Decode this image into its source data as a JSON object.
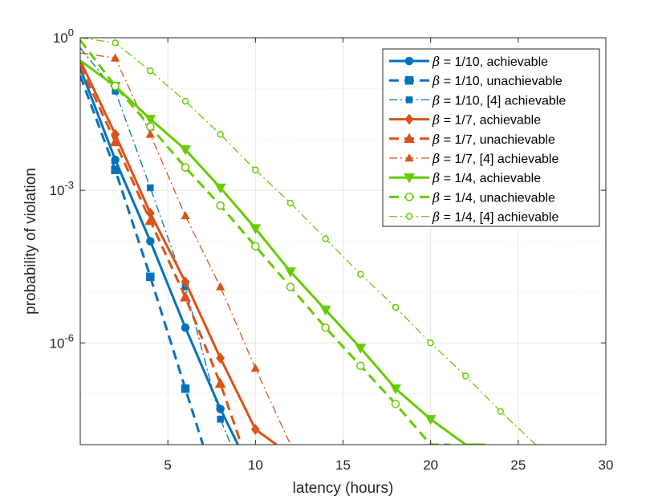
{
  "chart_data": {
    "type": "line",
    "title": "",
    "xlabel": "latency (hours)",
    "ylabel": "probability of violation",
    "xlim": [
      0,
      30
    ],
    "ylim_log10": [
      -8,
      0
    ],
    "y_scale": "log",
    "x_ticks": [
      5,
      10,
      15,
      20,
      25,
      30
    ],
    "y_ticks": [
      {
        "exp": 0,
        "base": "10",
        "sup": "0"
      },
      {
        "exp": -3,
        "base": "10",
        "sup": "-3"
      },
      {
        "exp": -6,
        "base": "10",
        "sup": "-6"
      }
    ],
    "grid": true,
    "legend_position": "top-right",
    "series": [
      {
        "name_prefix": "β",
        "name_rest": " = 1/10, achievable",
        "color": "#0072BD",
        "dash": "solid",
        "marker": "circle",
        "filled": true,
        "width": 3,
        "x": [
          0,
          2,
          4,
          6,
          8,
          9
        ],
        "y_exp": [
          -0.6,
          -2.4,
          -4.0,
          -5.7,
          -7.3,
          -8.0
        ]
      },
      {
        "name_prefix": "β",
        "name_rest": " = 1/10, unachievable",
        "color": "#0072BD",
        "dash": "dashed",
        "marker": "square",
        "filled": true,
        "width": 3,
        "x": [
          0,
          2,
          4,
          6,
          7
        ],
        "y_exp": [
          -0.75,
          -2.6,
          -4.7,
          -6.9,
          -8.0
        ]
      },
      {
        "name_prefix": "β",
        "name_rest": " = 1/10, [4] achievable",
        "color": "#0072BD",
        "dash": "dashdot",
        "marker": "square",
        "filled": true,
        "width": 1.3,
        "x": [
          0,
          2,
          4,
          6,
          8,
          8.6
        ],
        "y_exp": [
          -0.2,
          -1.05,
          -2.95,
          -4.9,
          -7.5,
          -8.0
        ]
      },
      {
        "name_prefix": "β",
        "name_rest": " = 1/7, achievable",
        "color": "#D95319",
        "dash": "solid",
        "marker": "diamond",
        "filled": true,
        "width": 3,
        "x": [
          0,
          2,
          4,
          6,
          8,
          10,
          11.2
        ],
        "y_exp": [
          -0.45,
          -1.9,
          -3.45,
          -4.8,
          -6.3,
          -7.7,
          -8.0
        ]
      },
      {
        "name_prefix": "β",
        "name_rest": " = 1/7, unachievable",
        "color": "#D95319",
        "dash": "dashed",
        "marker": "triangle-up",
        "filled": true,
        "width": 3,
        "x": [
          0,
          2,
          4,
          6,
          8,
          9.2
        ],
        "y_exp": [
          -0.55,
          -2.05,
          -3.6,
          -5.1,
          -6.8,
          -8.0
        ]
      },
      {
        "name_prefix": "β",
        "name_rest": " = 1/7, [4] achievable",
        "color": "#D95319",
        "dash": "dashdot",
        "marker": "triangle-up",
        "filled": true,
        "width": 1.3,
        "x": [
          0,
          2,
          4,
          6,
          8,
          10,
          12
        ],
        "y_exp": [
          -0.3,
          -0.4,
          -1.9,
          -3.5,
          -4.9,
          -6.5,
          -8.0
        ]
      },
      {
        "name_prefix": "β",
        "name_rest": " = 1/4, achievable",
        "color": "#66CC00",
        "dash": "solid",
        "marker": "triangle-down",
        "filled": true,
        "width": 3,
        "x": [
          0,
          2,
          4,
          6,
          8,
          10,
          12,
          14,
          16,
          18,
          20,
          22,
          23.1
        ],
        "y_exp": [
          -0.45,
          -0.95,
          -1.6,
          -2.2,
          -2.95,
          -3.75,
          -4.6,
          -5.35,
          -6.1,
          -6.9,
          -7.5,
          -8.0,
          -8.0
        ]
      },
      {
        "name_prefix": "β",
        "name_rest": " = 1/4, unachievable",
        "color": "#66CC00",
        "dash": "dashed",
        "marker": "circle",
        "filled": false,
        "width": 3,
        "x": [
          0,
          2,
          4,
          6,
          8,
          10,
          12,
          14,
          16,
          18,
          20,
          21.1
        ],
        "y_exp": [
          -0.05,
          -0.95,
          -1.75,
          -2.55,
          -3.3,
          -4.1,
          -4.9,
          -5.7,
          -6.45,
          -7.2,
          -8.0,
          -8.0
        ]
      },
      {
        "name_prefix": "β",
        "name_rest": " = 1/4, [4] achievable",
        "color": "#66CC00",
        "dash": "dashdot",
        "marker": "circle",
        "filled": false,
        "width": 1.3,
        "x": [
          0,
          2,
          4,
          6,
          8,
          10,
          12,
          14,
          16,
          18,
          20,
          22,
          24,
          26,
          26.4
        ],
        "y_exp": [
          0.0,
          -0.1,
          -0.65,
          -1.25,
          -1.9,
          -2.6,
          -3.25,
          -3.95,
          -4.65,
          -5.3,
          -6.0,
          -6.65,
          -7.35,
          -8.0,
          -8.0
        ]
      }
    ]
  }
}
